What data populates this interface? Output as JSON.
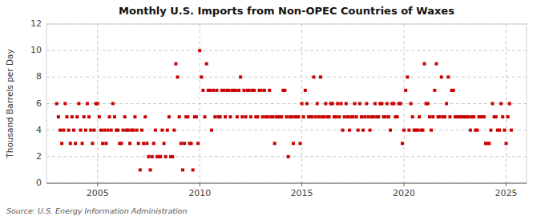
{
  "chart_data": {
    "type": "scatter",
    "title": "Monthly U.S. Imports from Non-OPEC Countries of Waxes",
    "ylabel": "Thousand Barrels per Day",
    "annotations": [
      "Source: U.S. Energy Information Administration"
    ],
    "color": "#cc0000",
    "marker": "square",
    "grid": true,
    "xlim": [
      2002.5,
      2026.0
    ],
    "xticks": [
      2005,
      2010,
      2015,
      2020,
      2025
    ],
    "ylim": [
      0,
      12
    ],
    "yticks": [
      0,
      2,
      4,
      6,
      8,
      10,
      12
    ],
    "x": [
      2003.0,
      2003.083,
      2003.167,
      2003.25,
      2003.333,
      2003.417,
      2003.5,
      2003.583,
      2003.667,
      2003.75,
      2003.833,
      2003.917,
      2004.0,
      2004.083,
      2004.167,
      2004.25,
      2004.333,
      2004.417,
      2004.5,
      2004.583,
      2004.667,
      2004.75,
      2004.833,
      2004.917,
      2005.0,
      2005.083,
      2005.167,
      2005.25,
      2005.333,
      2005.417,
      2005.5,
      2005.583,
      2005.667,
      2005.75,
      2005.833,
      2005.917,
      2006.0,
      2006.083,
      2006.167,
      2006.25,
      2006.333,
      2006.417,
      2006.5,
      2006.583,
      2006.667,
      2006.75,
      2006.833,
      2006.917,
      2007.0,
      2007.083,
      2007.167,
      2007.25,
      2007.333,
      2007.417,
      2007.5,
      2007.583,
      2007.667,
      2007.75,
      2007.833,
      2007.917,
      2008.0,
      2008.083,
      2008.167,
      2008.25,
      2008.333,
      2008.417,
      2008.5,
      2008.583,
      2008.667,
      2008.75,
      2008.833,
      2008.917,
      2009.0,
      2009.083,
      2009.167,
      2009.25,
      2009.333,
      2009.417,
      2009.5,
      2009.583,
      2009.667,
      2009.75,
      2009.833,
      2009.917,
      2010.0,
      2010.083,
      2010.167,
      2010.25,
      2010.333,
      2010.417,
      2010.5,
      2010.583,
      2010.667,
      2010.75,
      2010.833,
      2010.917,
      2011.0,
      2011.083,
      2011.167,
      2011.25,
      2011.333,
      2011.417,
      2011.5,
      2011.583,
      2011.667,
      2011.75,
      2011.833,
      2011.917,
      2012.0,
      2012.083,
      2012.167,
      2012.25,
      2012.333,
      2012.417,
      2012.5,
      2012.583,
      2012.667,
      2012.75,
      2012.833,
      2012.917,
      2013.0,
      2013.083,
      2013.167,
      2013.25,
      2013.333,
      2013.417,
      2013.5,
      2013.583,
      2013.667,
      2013.75,
      2013.833,
      2013.917,
      2014.0,
      2014.083,
      2014.167,
      2014.25,
      2014.333,
      2014.417,
      2014.5,
      2014.583,
      2014.667,
      2014.75,
      2014.833,
      2014.917,
      2015.0,
      2015.083,
      2015.167,
      2015.25,
      2015.333,
      2015.417,
      2015.5,
      2015.583,
      2015.667,
      2015.75,
      2015.833,
      2015.917,
      2016.0,
      2016.083,
      2016.167,
      2016.25,
      2016.333,
      2016.417,
      2016.5,
      2016.583,
      2016.667,
      2016.75,
      2016.833,
      2016.917,
      2017.0,
      2017.083,
      2017.167,
      2017.25,
      2017.333,
      2017.417,
      2017.5,
      2017.583,
      2017.667,
      2017.75,
      2017.833,
      2017.917,
      2018.0,
      2018.083,
      2018.167,
      2018.25,
      2018.333,
      2018.417,
      2018.5,
      2018.583,
      2018.667,
      2018.75,
      2018.833,
      2018.917,
      2019.0,
      2019.083,
      2019.167,
      2019.25,
      2019.333,
      2019.417,
      2019.5,
      2019.583,
      2019.667,
      2019.75,
      2019.833,
      2019.917,
      2020.0,
      2020.083,
      2020.167,
      2020.25,
      2020.333,
      2020.417,
      2020.5,
      2020.583,
      2020.667,
      2020.75,
      2020.833,
      2020.917,
      2021.0,
      2021.083,
      2021.167,
      2021.25,
      2021.333,
      2021.417,
      2021.5,
      2021.583,
      2021.667,
      2021.75,
      2021.833,
      2021.917,
      2022.0,
      2022.083,
      2022.167,
      2022.25,
      2022.333,
      2022.417,
      2022.5,
      2022.583,
      2022.667,
      2022.75,
      2022.833,
      2022.917,
      2023.0,
      2023.083,
      2023.167,
      2023.25,
      2023.333,
      2023.417,
      2023.5,
      2023.583,
      2023.667,
      2023.75,
      2023.833,
      2023.917,
      2024.0,
      2024.083,
      2024.167,
      2024.25,
      2024.333,
      2024.417,
      2024.5,
      2024.583,
      2024.667,
      2024.75,
      2024.833,
      2024.917,
      2025.0,
      2025.083,
      2025.167,
      2025.25
    ],
    "values": [
      6,
      5,
      4,
      3,
      4,
      6,
      5,
      4,
      3,
      5,
      4,
      3,
      5,
      6,
      4,
      3,
      5,
      4,
      6,
      5,
      4,
      3,
      4,
      6,
      6,
      5,
      4,
      3,
      4,
      3,
      4,
      5,
      4,
      6,
      5,
      4,
      4,
      3,
      3,
      4,
      5,
      4,
      4,
      3,
      4,
      4,
      5,
      4,
      3,
      1,
      4,
      3,
      5,
      3,
      2,
      1,
      2,
      3,
      4,
      2,
      2,
      2,
      4,
      3,
      2,
      4,
      5,
      2,
      2,
      4,
      9,
      8,
      5,
      3,
      1,
      3,
      5,
      5,
      3,
      3,
      1,
      5,
      5,
      3,
      10,
      8,
      7,
      5,
      9,
      7,
      7,
      4,
      7,
      5,
      7,
      5,
      5,
      7,
      7,
      5,
      7,
      7,
      5,
      7,
      7,
      7,
      5,
      7,
      8,
      5,
      7,
      5,
      7,
      7,
      5,
      7,
      7,
      5,
      5,
      7,
      7,
      5,
      7,
      5,
      5,
      7,
      5,
      5,
      3,
      5,
      5,
      5,
      5,
      7,
      7,
      5,
      2,
      5,
      5,
      3,
      5,
      5,
      5,
      3,
      6,
      5,
      7,
      6,
      5,
      5,
      5,
      8,
      5,
      6,
      5,
      8,
      5,
      5,
      6,
      5,
      5,
      6,
      6,
      5,
      5,
      6,
      5,
      6,
      4,
      5,
      6,
      5,
      4,
      5,
      5,
      6,
      5,
      4,
      6,
      5,
      4,
      5,
      6,
      5,
      4,
      5,
      5,
      6,
      5,
      5,
      6,
      6,
      5,
      5,
      6,
      5,
      4,
      6,
      6,
      5,
      5,
      6,
      6,
      3,
      4,
      7,
      8,
      4,
      6,
      5,
      4,
      4,
      4,
      5,
      4,
      4,
      9,
      6,
      6,
      5,
      4,
      5,
      7,
      9,
      5,
      5,
      8,
      5,
      5,
      6,
      8,
      5,
      7,
      7,
      5,
      5,
      5,
      5,
      5,
      5,
      5,
      5,
      5,
      4,
      5,
      5,
      4,
      4,
      5,
      5,
      5,
      5,
      3,
      3,
      3,
      4,
      6,
      5,
      5,
      4,
      4,
      6,
      5,
      4,
      3,
      5,
      6,
      4
    ]
  }
}
